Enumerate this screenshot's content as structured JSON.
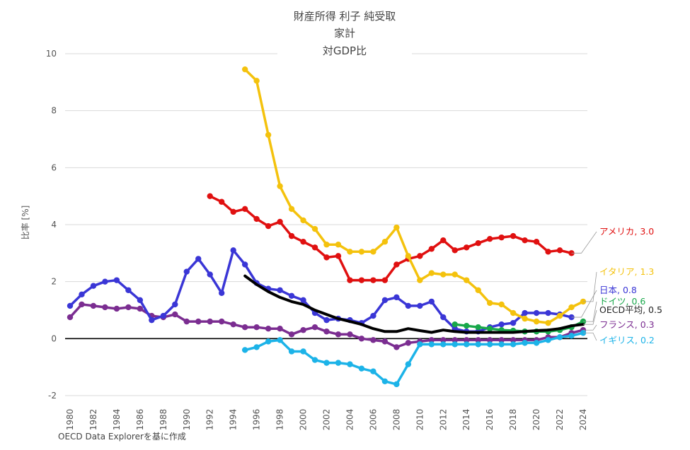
{
  "chart_data": {
    "type": "line",
    "title": [
      "財産所得 利子 純受取",
      "家計",
      "対GDP比"
    ],
    "ylabel": "比率 [%]",
    "xlabel": "",
    "source": "OECD Data Explorerを基に作成",
    "xlim": [
      1980,
      2024
    ],
    "ylim": [
      -2,
      10
    ],
    "yticks": [
      -2,
      0,
      2,
      4,
      6,
      8,
      10
    ],
    "xticks": [
      1980,
      1982,
      1984,
      1986,
      1988,
      1990,
      1992,
      1994,
      1996,
      1998,
      2000,
      2002,
      2004,
      2006,
      2008,
      2010,
      2012,
      2014,
      2016,
      2018,
      2020,
      2022,
      2024
    ],
    "series": [
      {
        "name": "フランス",
        "label": "フランス, 0.3",
        "color": "#7b2d91",
        "x": [
          1980,
          1981,
          1982,
          1983,
          1984,
          1985,
          1986,
          1987,
          1988,
          1989,
          1990,
          1991,
          1992,
          1993,
          1994,
          1995,
          1996,
          1997,
          1998,
          1999,
          2000,
          2001,
          2002,
          2003,
          2004,
          2005,
          2006,
          2007,
          2008,
          2009,
          2010,
          2011,
          2012,
          2013,
          2014,
          2015,
          2016,
          2017,
          2018,
          2019,
          2020,
          2021,
          2022,
          2023,
          2024
        ],
        "values": [
          0.75,
          1.2,
          1.15,
          1.1,
          1.05,
          1.1,
          1.05,
          0.8,
          0.75,
          0.85,
          0.6,
          0.6,
          0.6,
          0.6,
          0.5,
          0.4,
          0.4,
          0.35,
          0.35,
          0.15,
          0.3,
          0.4,
          0.25,
          0.15,
          0.15,
          0.0,
          -0.05,
          -0.1,
          -0.3,
          -0.15,
          -0.1,
          -0.05,
          -0.05,
          -0.05,
          -0.05,
          -0.05,
          -0.05,
          -0.05,
          -0.05,
          -0.05,
          -0.05,
          0.05,
          0.05,
          0.2,
          0.3
        ]
      },
      {
        "name": "日本",
        "label": "日本, 0.8",
        "color": "#3a36d6",
        "x": [
          1980,
          1981,
          1982,
          1983,
          1984,
          1985,
          1986,
          1987,
          1988,
          1989,
          1990,
          1991,
          1992,
          1993,
          1994,
          1995,
          1996,
          1997,
          1998,
          1999,
          2000,
          2001,
          2002,
          2003,
          2004,
          2005,
          2006,
          2007,
          2008,
          2009,
          2010,
          2011,
          2012,
          2013,
          2014,
          2015,
          2016,
          2017,
          2018,
          2019,
          2020,
          2021,
          2022,
          2023
        ],
        "values": [
          1.15,
          1.55,
          1.85,
          2.0,
          2.05,
          1.7,
          1.35,
          0.65,
          0.8,
          1.2,
          2.35,
          2.8,
          2.25,
          1.6,
          3.1,
          2.6,
          1.95,
          1.75,
          1.7,
          1.5,
          1.35,
          0.9,
          0.65,
          0.7,
          0.65,
          0.55,
          0.8,
          1.35,
          1.45,
          1.15,
          1.15,
          1.3,
          0.75,
          0.35,
          0.25,
          0.25,
          0.4,
          0.5,
          0.55,
          0.9,
          0.9,
          0.9,
          0.85,
          0.75
        ]
      },
      {
        "name": "アメリカ",
        "label": "アメリカ, 3.0",
        "color": "#e01010",
        "x": [
          1992,
          1993,
          1994,
          1995,
          1996,
          1997,
          1998,
          1999,
          2000,
          2001,
          2002,
          2003,
          2004,
          2005,
          2006,
          2007,
          2008,
          2009,
          2010,
          2011,
          2012,
          2013,
          2014,
          2015,
          2016,
          2017,
          2018,
          2019,
          2020,
          2021,
          2022,
          2023
        ],
        "values": [
          5.0,
          4.8,
          4.45,
          4.55,
          4.2,
          3.95,
          4.1,
          3.6,
          3.4,
          3.2,
          2.85,
          2.9,
          2.05,
          2.05,
          2.05,
          2.05,
          2.6,
          2.8,
          2.9,
          3.15,
          3.45,
          3.1,
          3.2,
          3.35,
          3.5,
          3.55,
          3.6,
          3.45,
          3.4,
          3.05,
          3.1,
          3.0
        ]
      },
      {
        "name": "イタリア",
        "label": "イタリア, 1.3",
        "color": "#f4c20d",
        "x": [
          1995,
          1996,
          1997,
          1998,
          1999,
          2000,
          2001,
          2002,
          2003,
          2004,
          2005,
          2006,
          2007,
          2008,
          2009,
          2010,
          2011,
          2012,
          2013,
          2014,
          2015,
          2016,
          2017,
          2018,
          2019,
          2020,
          2021,
          2022,
          2023,
          2024
        ],
        "values": [
          9.45,
          9.05,
          7.15,
          5.35,
          4.55,
          4.15,
          3.85,
          3.3,
          3.3,
          3.05,
          3.05,
          3.05,
          3.4,
          3.9,
          2.9,
          2.05,
          2.3,
          2.25,
          2.25,
          2.05,
          1.7,
          1.25,
          1.2,
          0.9,
          0.7,
          0.6,
          0.55,
          0.8,
          1.1,
          1.3
        ]
      },
      {
        "name": "ドイツ",
        "label": "ドイツ, 0.6",
        "color": "#18a84a",
        "x": [
          2013,
          2014,
          2015,
          2016,
          2017,
          2018,
          2019,
          2020,
          2021,
          2022,
          2023,
          2024
        ],
        "values": [
          0.5,
          0.45,
          0.4,
          0.35,
          0.3,
          0.28,
          0.25,
          0.25,
          0.25,
          0.3,
          0.4,
          0.6
        ]
      },
      {
        "name": "イギリス",
        "label": "イギリス, 0.2",
        "color": "#1cb3e8",
        "x": [
          1995,
          1996,
          1997,
          1998,
          1999,
          2000,
          2001,
          2002,
          2003,
          2004,
          2005,
          2006,
          2007,
          2008,
          2009,
          2010,
          2011,
          2012,
          2013,
          2014,
          2015,
          2016,
          2017,
          2018,
          2019,
          2020,
          2021,
          2022,
          2023,
          2024
        ],
        "values": [
          -0.4,
          -0.3,
          -0.1,
          -0.05,
          -0.45,
          -0.45,
          -0.75,
          -0.85,
          -0.85,
          -0.9,
          -1.05,
          -1.15,
          -1.5,
          -1.6,
          -0.9,
          -0.2,
          -0.2,
          -0.2,
          -0.2,
          -0.2,
          -0.2,
          -0.2,
          -0.2,
          -0.2,
          -0.15,
          -0.15,
          -0.05,
          0.05,
          0.1,
          0.2
        ]
      },
      {
        "name": "OECD平均",
        "label": "OECD平均, 0.5",
        "color": "#000000",
        "marker": false,
        "x": [
          1995,
          1996,
          1997,
          1998,
          1999,
          2000,
          2001,
          2002,
          2003,
          2004,
          2005,
          2006,
          2007,
          2008,
          2009,
          2010,
          2011,
          2012,
          2013,
          2014,
          2015,
          2016,
          2017,
          2018,
          2019,
          2020,
          2021,
          2022,
          2023,
          2024
        ],
        "values": [
          2.2,
          1.9,
          1.65,
          1.45,
          1.3,
          1.2,
          1.0,
          0.85,
          0.7,
          0.6,
          0.5,
          0.35,
          0.25,
          0.25,
          0.35,
          0.28,
          0.22,
          0.3,
          0.25,
          0.22,
          0.22,
          0.22,
          0.22,
          0.22,
          0.25,
          0.28,
          0.3,
          0.35,
          0.45,
          0.5
        ]
      }
    ]
  }
}
